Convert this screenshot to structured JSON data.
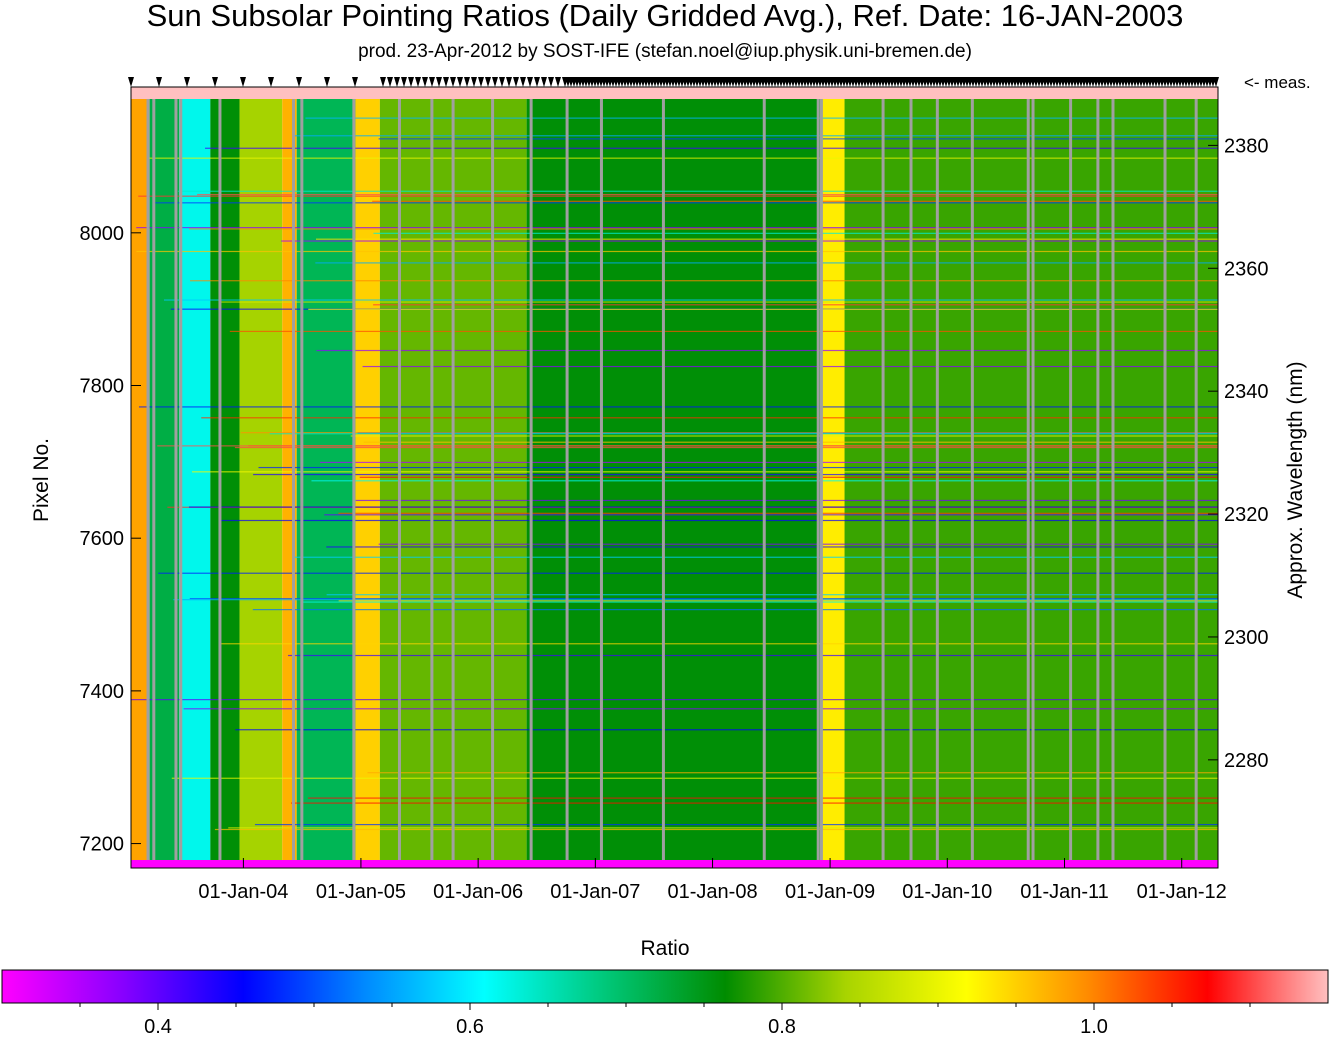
{
  "chart_data": {
    "type": "heatmap",
    "title": "Sun Subsolar Pointing Ratios (Daily Gridded Avg.), Ref. Date: 16-JAN-2003",
    "subtitle": "prod. 23-Apr-2012 by SOST-IFE (stefan.noel@iup.physik.uni-bremen.de)",
    "xlabel": "",
    "ylabel": "Pixel No.",
    "y2label": "Approx. Wavelength (nm)",
    "measurement_label": "<- meas.",
    "colorbar_label": "Ratio",
    "x_range": [
      "2003-01-16",
      "2012-04-23"
    ],
    "x_tick_labels": [
      "01-Jan-04",
      "01-Jan-05",
      "01-Jan-06",
      "01-Jan-07",
      "01-Jan-08",
      "01-Jan-09",
      "01-Jan-10",
      "01-Jan-11",
      "01-Jan-12"
    ],
    "y_range": [
      7168,
      8191
    ],
    "y_tick_labels": [
      "7200",
      "7400",
      "7600",
      "7800",
      "8000"
    ],
    "y_ticks": [
      7200,
      7400,
      7600,
      7800,
      8000
    ],
    "y2_tick_labels": [
      "2280",
      "2300",
      "2320",
      "2340",
      "2360",
      "2380"
    ],
    "y2_ticks": [
      2280,
      2300,
      2320,
      2340,
      2360,
      2380
    ],
    "colorbar_range": [
      0.3,
      1.15
    ],
    "colorbar_tick_labels": [
      "0.4",
      "0.6",
      "0.8",
      "1.0"
    ],
    "colorbar_ticks": [
      0.4,
      0.6,
      0.8,
      1.0
    ],
    "colormap": [
      "#ff00ff",
      "#8800ff",
      "#0000ff",
      "#0088ff",
      "#00ffff",
      "#00c87a",
      "#008c00",
      "#a8d400",
      "#ffff00",
      "#ff8c00",
      "#ff0000",
      "#ffc0c0"
    ],
    "gap_color": "#a0a0a0",
    "time_periods": [
      {
        "start": "2003-01-16",
        "end": "2003-03-15",
        "mean_ratio": 0.98
      },
      {
        "start": "2003-03-15",
        "end": "2003-06-15",
        "mean_ratio": 0.72
      },
      {
        "start": "2003-06-15",
        "end": "2003-09-20",
        "mean_ratio": 0.62
      },
      {
        "start": "2003-09-20",
        "end": "2003-12-20",
        "mean_ratio": 0.76
      },
      {
        "start": "2003-12-20",
        "end": "2004-05-01",
        "mean_ratio": 0.84
      },
      {
        "start": "2004-05-01",
        "end": "2004-06-15",
        "mean_ratio": 0.97
      },
      {
        "start": "2004-06-15",
        "end": "2004-12-15",
        "mean_ratio": 0.71
      },
      {
        "start": "2004-12-15",
        "end": "2005-03-01",
        "mean_ratio": 0.95
      },
      {
        "start": "2005-03-01",
        "end": "2006-06-01",
        "mean_ratio": 0.81
      },
      {
        "start": "2006-06-01",
        "end": "2008-12-01",
        "mean_ratio": 0.76
      },
      {
        "start": "2008-12-01",
        "end": "2009-02-15",
        "mean_ratio": 0.93
      },
      {
        "start": "2009-02-15",
        "end": "2012-04-23",
        "mean_ratio": 0.79
      }
    ],
    "data_gaps": [
      "2003-03-10",
      "2003-03-28",
      "2003-06-05",
      "2003-06-20",
      "2003-10-20",
      "2004-06-05",
      "2004-07-01",
      "2004-12-10",
      "2005-05-01",
      "2005-08-10",
      "2005-10-15",
      "2006-02-15",
      "2006-06-15",
      "2006-10-05",
      "2007-01-20",
      "2007-08-01",
      "2008-06-10",
      "2008-11-25",
      "2008-12-05",
      "2009-06-15",
      "2009-09-10",
      "2009-12-01",
      "2010-03-20",
      "2010-09-10",
      "2010-09-25",
      "2011-01-20",
      "2011-04-15",
      "2011-06-01",
      "2011-11-10",
      "2012-02-15"
    ]
  }
}
